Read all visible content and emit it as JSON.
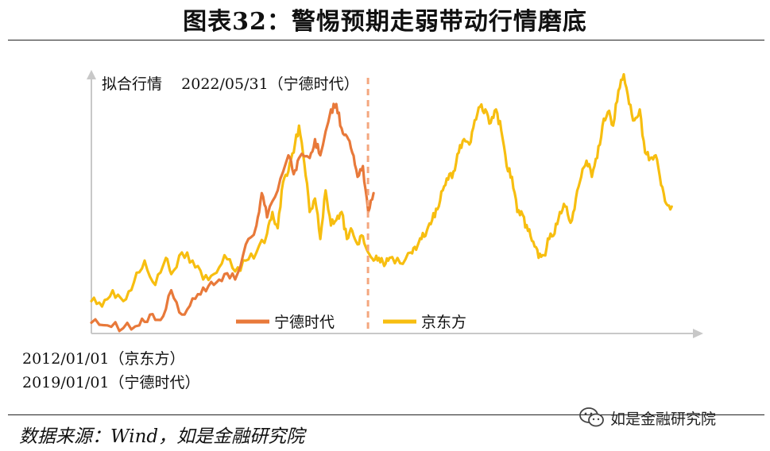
{
  "title": "图表32：警惕预期走弱带动行情磨底",
  "source": "数据来源：Wind，如是金融研究院",
  "watermark": "如是金融研究院",
  "watermark_icon": "wechat-icon",
  "start_dates": [
    "2012/01/01（京东方）",
    "2019/01/01（宁德时代）"
  ],
  "chart_data": {
    "type": "line",
    "title": "",
    "annotation": "拟合行情    2022/05/31（宁德时代）",
    "xlabel": "",
    "ylabel": "",
    "axis_ticks": "none",
    "grid": false,
    "legend": "bottom",
    "vline": {
      "color": "#F4A77F",
      "dashed": true
    },
    "series": [
      {
        "name": "宁德时代",
        "color": "#E8793A",
        "points": [
          [
            0,
            0.04
          ],
          [
            0.03,
            0.03
          ],
          [
            0.06,
            0.02
          ],
          [
            0.09,
            0.03
          ],
          [
            0.11,
            0.07
          ],
          [
            0.13,
            0.05
          ],
          [
            0.15,
            0.16
          ],
          [
            0.17,
            0.07
          ],
          [
            0.19,
            0.13
          ],
          [
            0.21,
            0.17
          ],
          [
            0.23,
            0.18
          ],
          [
            0.25,
            0.22
          ],
          [
            0.27,
            0.2
          ],
          [
            0.29,
            0.33
          ],
          [
            0.31,
            0.4
          ],
          [
            0.32,
            0.52
          ],
          [
            0.33,
            0.43
          ],
          [
            0.35,
            0.53
          ],
          [
            0.37,
            0.66
          ],
          [
            0.38,
            0.59
          ],
          [
            0.39,
            0.65
          ],
          [
            0.41,
            0.65
          ],
          [
            0.42,
            0.72
          ],
          [
            0.43,
            0.66
          ],
          [
            0.45,
            0.83
          ],
          [
            0.46,
            0.85
          ],
          [
            0.47,
            0.76
          ],
          [
            0.48,
            0.73
          ],
          [
            0.49,
            0.67
          ],
          [
            0.5,
            0.58
          ],
          [
            0.51,
            0.62
          ],
          [
            0.52,
            0.45
          ],
          [
            0.53,
            0.52
          ]
        ]
      },
      {
        "name": "京东方",
        "color": "#F7BE10",
        "points": [
          [
            0,
            0.12
          ],
          [
            0.02,
            0.1
          ],
          [
            0.04,
            0.16
          ],
          [
            0.06,
            0.12
          ],
          [
            0.08,
            0.19
          ],
          [
            0.1,
            0.27
          ],
          [
            0.12,
            0.18
          ],
          [
            0.14,
            0.28
          ],
          [
            0.15,
            0.22
          ],
          [
            0.17,
            0.3
          ],
          [
            0.19,
            0.27
          ],
          [
            0.21,
            0.2
          ],
          [
            0.23,
            0.22
          ],
          [
            0.25,
            0.29
          ],
          [
            0.27,
            0.23
          ],
          [
            0.29,
            0.27
          ],
          [
            0.31,
            0.3
          ],
          [
            0.33,
            0.37
          ],
          [
            0.34,
            0.45
          ],
          [
            0.35,
            0.39
          ],
          [
            0.36,
            0.56
          ],
          [
            0.37,
            0.6
          ],
          [
            0.38,
            0.67
          ],
          [
            0.39,
            0.77
          ],
          [
            0.4,
            0.63
          ],
          [
            0.41,
            0.45
          ],
          [
            0.42,
            0.5
          ],
          [
            0.43,
            0.35
          ],
          [
            0.44,
            0.53
          ],
          [
            0.45,
            0.4
          ],
          [
            0.46,
            0.42
          ],
          [
            0.47,
            0.45
          ],
          [
            0.48,
            0.35
          ],
          [
            0.49,
            0.38
          ],
          [
            0.5,
            0.33
          ],
          [
            0.51,
            0.36
          ],
          [
            0.52,
            0.3
          ],
          [
            0.53,
            0.27
          ],
          [
            0.54,
            0.28
          ],
          [
            0.55,
            0.25
          ],
          [
            0.56,
            0.28
          ],
          [
            0.58,
            0.26
          ],
          [
            0.6,
            0.3
          ],
          [
            0.61,
            0.31
          ],
          [
            0.62,
            0.35
          ],
          [
            0.63,
            0.38
          ],
          [
            0.64,
            0.42
          ],
          [
            0.65,
            0.46
          ],
          [
            0.66,
            0.53
          ],
          [
            0.67,
            0.57
          ],
          [
            0.68,
            0.6
          ],
          [
            0.69,
            0.67
          ],
          [
            0.7,
            0.72
          ],
          [
            0.71,
            0.7
          ],
          [
            0.72,
            0.79
          ],
          [
            0.73,
            0.84
          ],
          [
            0.74,
            0.83
          ],
          [
            0.75,
            0.78
          ],
          [
            0.76,
            0.83
          ],
          [
            0.77,
            0.75
          ],
          [
            0.78,
            0.62
          ],
          [
            0.79,
            0.58
          ],
          [
            0.8,
            0.45
          ],
          [
            0.81,
            0.44
          ],
          [
            0.82,
            0.38
          ],
          [
            0.83,
            0.34
          ],
          [
            0.84,
            0.28
          ],
          [
            0.85,
            0.29
          ],
          [
            0.86,
            0.35
          ],
          [
            0.87,
            0.37
          ],
          [
            0.88,
            0.45
          ],
          [
            0.89,
            0.47
          ],
          [
            0.9,
            0.41
          ],
          [
            0.91,
            0.5
          ],
          [
            0.92,
            0.58
          ],
          [
            0.93,
            0.64
          ],
          [
            0.94,
            0.58
          ],
          [
            0.95,
            0.65
          ],
          [
            0.96,
            0.77
          ],
          [
            0.97,
            0.82
          ],
          [
            0.98,
            0.77
          ],
          [
            0.99,
            0.9
          ],
          [
            1.0,
            0.96
          ],
          [
            1.01,
            0.85
          ],
          [
            1.02,
            0.79
          ],
          [
            1.03,
            0.83
          ],
          [
            1.04,
            0.67
          ],
          [
            1.05,
            0.65
          ],
          [
            1.06,
            0.66
          ],
          [
            1.07,
            0.55
          ],
          [
            1.08,
            0.48
          ],
          [
            1.09,
            0.47
          ]
        ]
      }
    ]
  }
}
